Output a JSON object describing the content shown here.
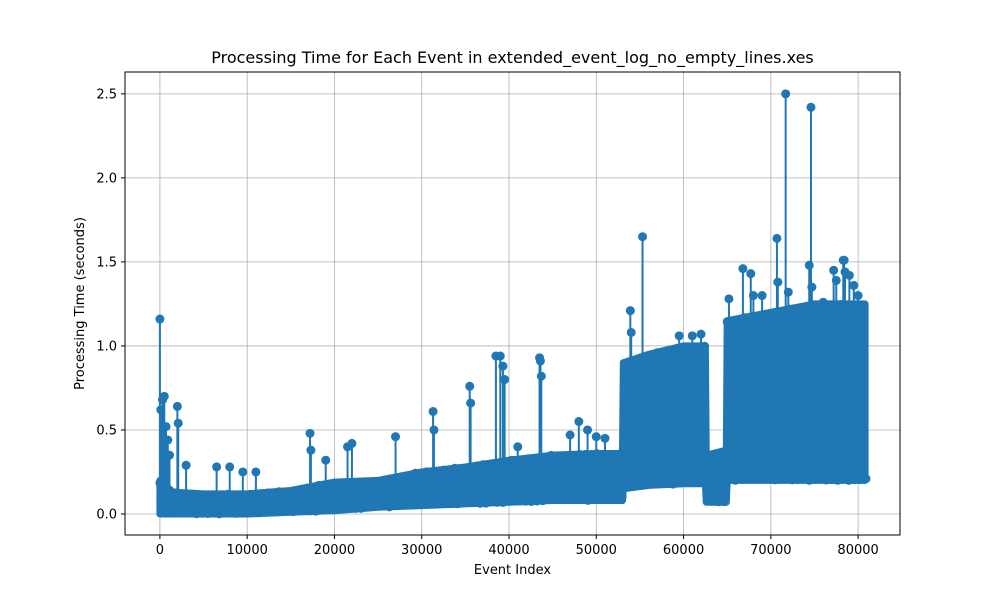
{
  "chart_data": {
    "type": "line",
    "title": "Processing Time for Each Event in extended_event_log_no_empty_lines.xes",
    "xlabel": "Event Index",
    "ylabel": "Processing Time (seconds)",
    "xlim": [
      -4000,
      84800
    ],
    "ylim": [
      -0.125,
      2.63
    ],
    "xticks": [
      0,
      10000,
      20000,
      30000,
      40000,
      50000,
      60000,
      70000,
      80000
    ],
    "xtick_labels": [
      "0",
      "10000",
      "20000",
      "30000",
      "40000",
      "50000",
      "60000",
      "70000",
      "80000"
    ],
    "yticks": [
      0.0,
      0.5,
      1.0,
      1.5,
      2.0,
      2.5
    ],
    "ytick_labels": [
      "0.0",
      "0.5",
      "1.0",
      "1.5",
      "2.0",
      "2.5"
    ],
    "grid": true,
    "marker": "circle",
    "color": "#1f77b4",
    "series": [
      {
        "name": "",
        "band_profile": [
          [
            0,
            0.0,
            0.2
          ],
          [
            1500,
            0.0,
            0.13
          ],
          [
            5000,
            0.0,
            0.12
          ],
          [
            10000,
            0.0,
            0.12
          ],
          [
            15000,
            0.01,
            0.14
          ],
          [
            20000,
            0.02,
            0.19
          ],
          [
            25000,
            0.04,
            0.2
          ],
          [
            30000,
            0.05,
            0.25
          ],
          [
            35000,
            0.06,
            0.28
          ],
          [
            40000,
            0.07,
            0.32
          ],
          [
            45000,
            0.08,
            0.35
          ],
          [
            50000,
            0.08,
            0.36
          ],
          [
            53000,
            0.08,
            0.36
          ],
          [
            53100,
            0.15,
            0.9
          ],
          [
            56000,
            0.17,
            0.95
          ],
          [
            60000,
            0.18,
            1.0
          ],
          [
            62500,
            0.18,
            1.0
          ],
          [
            62600,
            0.07,
            0.35
          ],
          [
            64900,
            0.07,
            0.38
          ],
          [
            65000,
            0.2,
            1.15
          ],
          [
            70000,
            0.2,
            1.2
          ],
          [
            75000,
            0.2,
            1.25
          ],
          [
            80000,
            0.2,
            1.25
          ],
          [
            80800,
            0.2,
            1.25
          ]
        ],
        "spikes": [
          [
            0,
            1.16
          ],
          [
            100,
            0.62
          ],
          [
            300,
            0.68
          ],
          [
            500,
            0.7
          ],
          [
            700,
            0.52
          ],
          [
            900,
            0.44
          ],
          [
            1100,
            0.35
          ],
          [
            2000,
            0.64
          ],
          [
            2100,
            0.54
          ],
          [
            3000,
            0.29
          ],
          [
            6500,
            0.28
          ],
          [
            8000,
            0.28
          ],
          [
            9500,
            0.25
          ],
          [
            11000,
            0.25
          ],
          [
            17200,
            0.48
          ],
          [
            17300,
            0.38
          ],
          [
            19000,
            0.32
          ],
          [
            21500,
            0.4
          ],
          [
            22000,
            0.42
          ],
          [
            27000,
            0.46
          ],
          [
            31300,
            0.61
          ],
          [
            31400,
            0.5
          ],
          [
            35500,
            0.76
          ],
          [
            35600,
            0.66
          ],
          [
            38500,
            0.94
          ],
          [
            39000,
            0.94
          ],
          [
            39300,
            0.88
          ],
          [
            39500,
            0.8
          ],
          [
            41000,
            0.4
          ],
          [
            43500,
            0.93
          ],
          [
            43600,
            0.91
          ],
          [
            43700,
            0.82
          ],
          [
            47000,
            0.47
          ],
          [
            48000,
            0.55
          ],
          [
            49000,
            0.5
          ],
          [
            50000,
            0.46
          ],
          [
            51000,
            0.45
          ],
          [
            53900,
            1.21
          ],
          [
            54000,
            1.08
          ],
          [
            55300,
            1.65
          ],
          [
            57000,
            0.96
          ],
          [
            59500,
            1.06
          ],
          [
            61000,
            1.06
          ],
          [
            62000,
            1.07
          ],
          [
            65200,
            1.28
          ],
          [
            66800,
            1.46
          ],
          [
            67700,
            1.43
          ],
          [
            68000,
            1.3
          ],
          [
            69000,
            1.3
          ],
          [
            70700,
            1.64
          ],
          [
            70800,
            1.38
          ],
          [
            71700,
            2.5
          ],
          [
            72000,
            1.32
          ],
          [
            74400,
            1.48
          ],
          [
            74600,
            2.42
          ],
          [
            74700,
            1.35
          ],
          [
            76000,
            1.26
          ],
          [
            77200,
            1.45
          ],
          [
            77500,
            1.39
          ],
          [
            78300,
            1.51
          ],
          [
            78400,
            1.51
          ],
          [
            78500,
            1.44
          ],
          [
            79000,
            1.42
          ],
          [
            79500,
            1.36
          ],
          [
            80000,
            1.3
          ]
        ]
      }
    ]
  }
}
